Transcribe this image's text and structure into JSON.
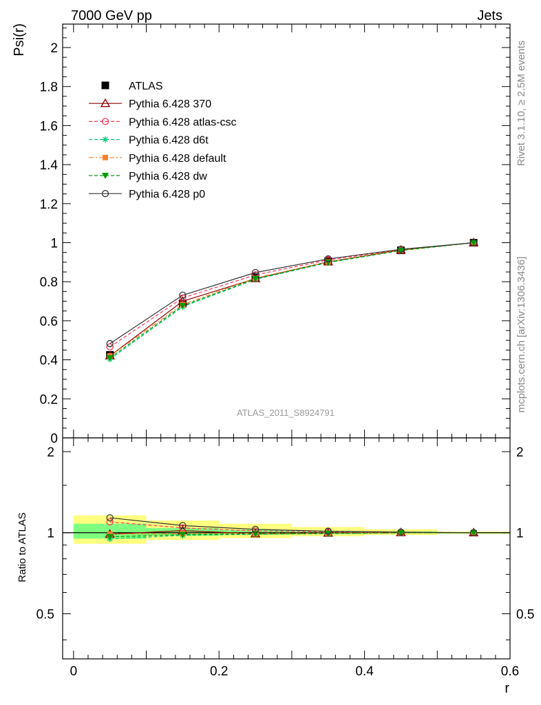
{
  "header": {
    "left": "7000 GeV pp",
    "right": "Jets"
  },
  "side_text": {
    "rivet": "Rivet 3.1.10, ≥ 2.5M events",
    "mcplots": "mcplots.cern.ch [arXiv:1306.3436]"
  },
  "watermark": "ATLAS_2011_S8924791",
  "colors": {
    "atlas": "#000000",
    "p370": "#8b0000",
    "atlas_csc": "#ff3355",
    "d6t": "#00cc77",
    "default": "#ff7f2a",
    "dw": "#009900",
    "p0": "#333333",
    "band_inner": "#7fff7f",
    "band_outer": "#ffff80"
  },
  "chart_data": [
    {
      "type": "line",
      "ylabel": "Psi(r)",
      "xlim": [
        -0.015,
        0.6
      ],
      "ylim": [
        0,
        2.12
      ],
      "yticks": [
        "0",
        "0.2",
        "0.4",
        "0.6",
        "0.8",
        "1",
        "1.2",
        "1.4",
        "1.6",
        "1.8",
        "2"
      ],
      "legend_position": "top-left",
      "x": [
        0.05,
        0.15,
        0.25,
        0.35,
        0.45,
        0.55
      ],
      "series": [
        {
          "name": "ATLAS",
          "style": "data",
          "values": [
            0.425,
            0.688,
            0.823,
            0.905,
            0.961,
            1.0
          ]
        },
        {
          "name": "Pythia 6.428 370",
          "style": "solid",
          "marker": "triangle-open",
          "values": [
            0.42,
            0.7,
            0.816,
            0.902,
            0.962,
            1.0
          ]
        },
        {
          "name": "Pythia 6.428 atlas-csc",
          "style": "dashed",
          "marker": "circle-open",
          "values": [
            0.466,
            0.717,
            0.835,
            0.912,
            0.964,
            1.0
          ]
        },
        {
          "name": "Pythia 6.428 d6t",
          "style": "dashed",
          "marker": "star",
          "values": [
            0.403,
            0.672,
            0.812,
            0.898,
            0.96,
            1.0
          ]
        },
        {
          "name": "Pythia 6.428 default",
          "style": "dashdot",
          "marker": "square",
          "values": [
            0.42,
            0.683,
            0.819,
            0.902,
            0.961,
            1.0
          ]
        },
        {
          "name": "Pythia 6.428 dw",
          "style": "dashed",
          "marker": "triangle-down",
          "values": [
            0.41,
            0.677,
            0.815,
            0.9,
            0.96,
            1.0
          ]
        },
        {
          "name": "Pythia 6.428 p0",
          "style": "solid",
          "marker": "circle-open",
          "values": [
            0.483,
            0.731,
            0.847,
            0.917,
            0.966,
            1.0
          ]
        }
      ]
    },
    {
      "type": "line",
      "ylabel": "Ratio to ATLAS",
      "xlabel": "r",
      "xlim": [
        -0.015,
        0.6
      ],
      "ylim": [
        0.34,
        2.25
      ],
      "scale": "log",
      "yticks": [
        "0.5",
        "1",
        "2"
      ],
      "xticks": [
        "0",
        "0.2",
        "0.4",
        "0.6"
      ],
      "x": [
        0.05,
        0.15,
        0.25,
        0.35,
        0.45,
        0.55
      ],
      "bands": {
        "bin_edges": [
          0.0,
          0.1,
          0.2,
          0.3,
          0.4,
          0.5,
          0.6
        ],
        "inner": [
          [
            0.95,
            1.08
          ],
          [
            0.975,
            1.04
          ],
          [
            0.985,
            1.025
          ],
          [
            0.99,
            1.015
          ],
          [
            0.995,
            1.01
          ],
          [
            1.0,
            1.0
          ]
        ],
        "outer": [
          [
            0.91,
            1.16
          ],
          [
            0.94,
            1.11
          ],
          [
            0.955,
            1.08
          ],
          [
            0.97,
            1.05
          ],
          [
            0.98,
            1.03
          ],
          [
            0.99,
            1.01
          ]
        ]
      },
      "series": [
        {
          "name": "Pythia 6.428 370",
          "style": "solid",
          "marker": "triangle-open",
          "values": [
            0.988,
            1.018,
            0.991,
            0.997,
            1.001,
            1.0
          ]
        },
        {
          "name": "Pythia 6.428 atlas-csc",
          "style": "dashed",
          "marker": "circle-open",
          "values": [
            1.097,
            1.042,
            1.015,
            1.008,
            1.003,
            1.0
          ]
        },
        {
          "name": "Pythia 6.428 d6t",
          "style": "dashed",
          "marker": "star",
          "values": [
            0.948,
            0.977,
            0.987,
            0.992,
            0.999,
            1.0
          ]
        },
        {
          "name": "Pythia 6.428 default",
          "style": "dashdot",
          "marker": "square",
          "values": [
            0.988,
            0.993,
            0.995,
            0.997,
            1.0,
            1.0
          ]
        },
        {
          "name": "Pythia 6.428 dw",
          "style": "dashed",
          "marker": "triangle-down",
          "values": [
            0.965,
            0.984,
            0.99,
            0.994,
            0.999,
            1.0
          ]
        },
        {
          "name": "Pythia 6.428 p0",
          "style": "solid",
          "marker": "circle-open",
          "values": [
            1.136,
            1.063,
            1.029,
            1.013,
            1.005,
            1.0
          ]
        }
      ]
    }
  ]
}
